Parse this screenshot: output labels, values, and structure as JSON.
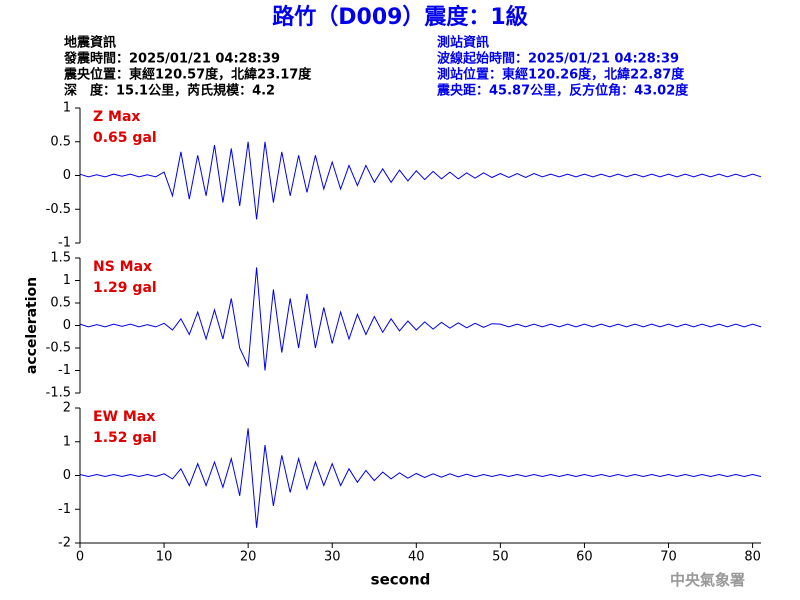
{
  "header": {
    "title": "路竹（D009）震度：1級",
    "left": [
      "地震資訊",
      "發震時間：2025/01/21 04:28:39",
      "震央位置：東經120.57度，北緯23.17度",
      "深　度：15.1公里，芮氏規模：4.2"
    ],
    "right": [
      "測站資訊",
      "波線起始時間：2025/01/21 04:28:39",
      "測站位置：東經120.26度，北緯22.87度",
      "震央距：45.87公里，反方位角：43.02度"
    ],
    "watermark": "中央氣象署"
  },
  "chart_data": [
    {
      "type": "line",
      "name": "Z Max",
      "peak": "0.65 gal",
      "color": "#0000ee",
      "ylim": [
        -1,
        1
      ],
      "yticks": [
        -1,
        -0.5,
        0,
        0.5,
        1
      ],
      "x": [
        0,
        1,
        2,
        3,
        4,
        5,
        6,
        7,
        8,
        9,
        10,
        11,
        12,
        13,
        14,
        15,
        16,
        17,
        18,
        19,
        20,
        21,
        22,
        23,
        24,
        25,
        26,
        27,
        28,
        29,
        30,
        31,
        32,
        33,
        34,
        35,
        36,
        37,
        38,
        39,
        40,
        41,
        42,
        43,
        44,
        45,
        46,
        47,
        48,
        49,
        50,
        51,
        52,
        53,
        54,
        55,
        56,
        57,
        58,
        59,
        60,
        61,
        62,
        63,
        64,
        65,
        66,
        67,
        68,
        69,
        70,
        71,
        72,
        73,
        74,
        75,
        76,
        77,
        78,
        79,
        80,
        81
      ],
      "values": [
        0.02,
        -0.02,
        0.01,
        -0.02,
        0.02,
        -0.01,
        0.02,
        -0.02,
        0.01,
        -0.02,
        0.05,
        -0.3,
        0.35,
        -0.35,
        0.3,
        -0.3,
        0.45,
        -0.4,
        0.4,
        -0.45,
        0.5,
        -0.65,
        0.5,
        -0.4,
        0.35,
        -0.3,
        0.3,
        -0.25,
        0.3,
        -0.2,
        0.2,
        -0.2,
        0.15,
        -0.15,
        0.15,
        -0.1,
        0.1,
        -0.1,
        0.08,
        -0.08,
        0.07,
        -0.06,
        0.06,
        -0.05,
        0.05,
        -0.05,
        0.04,
        -0.04,
        0.04,
        -0.03,
        0.03,
        -0.03,
        0.03,
        -0.03,
        0.03,
        -0.02,
        0.02,
        -0.02,
        0.02,
        -0.02,
        0.02,
        -0.02,
        0.02,
        -0.02,
        0.02,
        -0.02,
        0.02,
        -0.02,
        0.02,
        -0.02,
        0.02,
        -0.02,
        0.02,
        -0.02,
        0.02,
        -0.02,
        0.02,
        -0.02,
        0.02,
        -0.02,
        0.02,
        -0.02
      ]
    },
    {
      "type": "line",
      "name": "NS Max",
      "peak": "1.29 gal",
      "color": "#0000ee",
      "ylim": [
        -1.5,
        1.5
      ],
      "yticks": [
        -1.5,
        -1,
        -0.5,
        0,
        0.5,
        1,
        1.5
      ],
      "ylabel": "acceleration",
      "x": [
        0,
        1,
        2,
        3,
        4,
        5,
        6,
        7,
        8,
        9,
        10,
        11,
        12,
        13,
        14,
        15,
        16,
        17,
        18,
        19,
        20,
        21,
        22,
        23,
        24,
        25,
        26,
        27,
        28,
        29,
        30,
        31,
        32,
        33,
        34,
        35,
        36,
        37,
        38,
        39,
        40,
        41,
        42,
        43,
        44,
        45,
        46,
        47,
        48,
        49,
        50,
        51,
        52,
        53,
        54,
        55,
        56,
        57,
        58,
        59,
        60,
        61,
        62,
        63,
        64,
        65,
        66,
        67,
        68,
        69,
        70,
        71,
        72,
        73,
        74,
        75,
        76,
        77,
        78,
        79,
        80,
        81
      ],
      "values": [
        0.03,
        -0.03,
        0.02,
        -0.03,
        0.03,
        -0.02,
        0.03,
        -0.03,
        0.02,
        -0.03,
        0.05,
        -0.1,
        0.15,
        -0.2,
        0.3,
        -0.3,
        0.35,
        -0.3,
        0.6,
        -0.5,
        -0.9,
        1.29,
        -1.0,
        0.8,
        -0.6,
        0.6,
        -0.5,
        0.7,
        -0.5,
        0.4,
        -0.4,
        0.3,
        -0.3,
        0.25,
        -0.2,
        0.2,
        -0.15,
        0.15,
        -0.12,
        0.1,
        -0.1,
        0.08,
        -0.08,
        0.07,
        -0.06,
        0.06,
        -0.05,
        0.05,
        -0.04,
        0.04,
        0.03,
        -0.03,
        0.03,
        -0.03,
        0.03,
        -0.03,
        0.03,
        -0.03,
        0.03,
        -0.03,
        0.03,
        -0.03,
        0.03,
        -0.03,
        0.03,
        -0.03,
        0.03,
        -0.03,
        0.03,
        -0.03,
        0.03,
        -0.03,
        0.03,
        -0.03,
        0.03,
        -0.03,
        0.03,
        -0.03,
        0.03,
        -0.03,
        0.03,
        -0.03
      ]
    },
    {
      "type": "line",
      "name": "EW Max",
      "peak": "1.52 gal",
      "color": "#0000ee",
      "ylim": [
        -2,
        2
      ],
      "yticks": [
        -2,
        -1,
        0,
        1,
        2
      ],
      "xlim": [
        0,
        81
      ],
      "xticks": [
        0,
        10,
        20,
        30,
        40,
        50,
        60,
        70,
        80
      ],
      "xlabel": "second",
      "x": [
        0,
        1,
        2,
        3,
        4,
        5,
        6,
        7,
        8,
        9,
        10,
        11,
        12,
        13,
        14,
        15,
        16,
        17,
        18,
        19,
        20,
        21,
        22,
        23,
        24,
        25,
        26,
        27,
        28,
        29,
        30,
        31,
        32,
        33,
        34,
        35,
        36,
        37,
        38,
        39,
        40,
        41,
        42,
        43,
        44,
        45,
        46,
        47,
        48,
        49,
        50,
        51,
        52,
        53,
        54,
        55,
        56,
        57,
        58,
        59,
        60,
        61,
        62,
        63,
        64,
        65,
        66,
        67,
        68,
        69,
        70,
        71,
        72,
        73,
        74,
        75,
        76,
        77,
        78,
        79,
        80,
        81
      ],
      "values": [
        0.03,
        -0.03,
        0.03,
        -0.03,
        0.03,
        -0.03,
        0.03,
        -0.03,
        0.03,
        -0.03,
        0.05,
        -0.1,
        0.2,
        -0.3,
        0.35,
        -0.3,
        0.4,
        -0.35,
        0.5,
        -0.6,
        1.4,
        -1.55,
        0.9,
        -0.9,
        0.6,
        -0.5,
        0.5,
        -0.4,
        0.4,
        -0.3,
        0.35,
        -0.3,
        0.2,
        -0.2,
        0.15,
        -0.15,
        0.1,
        -0.1,
        0.08,
        -0.08,
        0.06,
        -0.06,
        0.05,
        -0.05,
        0.05,
        -0.04,
        0.04,
        -0.04,
        0.03,
        -0.03,
        0.03,
        -0.03,
        0.03,
        -0.03,
        0.03,
        -0.03,
        0.03,
        -0.03,
        0.03,
        -0.03,
        0.03,
        -0.03,
        0.03,
        -0.03,
        0.03,
        -0.03,
        0.03,
        -0.03,
        0.03,
        -0.03,
        0.03,
        -0.03,
        0.03,
        -0.03,
        0.03,
        -0.03,
        0.03,
        -0.03,
        0.03,
        -0.03,
        0.03,
        -0.03
      ]
    }
  ]
}
